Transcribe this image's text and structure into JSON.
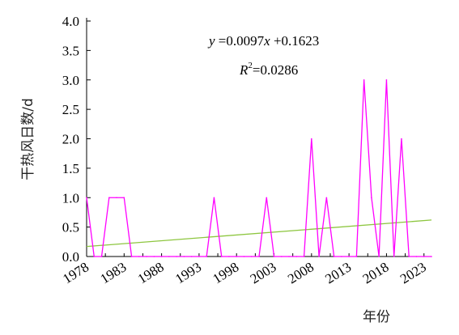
{
  "chart_data": {
    "type": "line",
    "xlabel": "年份",
    "ylabel": "干热风日数/d",
    "xlim": [
      1978,
      2024
    ],
    "ylim": [
      0,
      4.0
    ],
    "x_ticks": [
      "1978",
      "1983",
      "1988",
      "1993",
      "1998",
      "2003",
      "2008",
      "2013",
      "2018",
      "2023"
    ],
    "y_ticks": [
      "0.0",
      "0.5",
      "1.0",
      "1.5",
      "2.0",
      "2.5",
      "3.0",
      "3.5",
      "4.0"
    ],
    "grid": false,
    "series": [
      {
        "role": "observed",
        "color": "#ff00ff",
        "x": [
          1978,
          1979,
          1980,
          1981,
          1982,
          1983,
          1984,
          1985,
          1986,
          1987,
          1988,
          1989,
          1990,
          1991,
          1992,
          1993,
          1994,
          1995,
          1996,
          1997,
          1998,
          1999,
          2000,
          2001,
          2002,
          2003,
          2004,
          2005,
          2006,
          2007,
          2008,
          2009,
          2010,
          2011,
          2012,
          2013,
          2014,
          2015,
          2016,
          2017,
          2018,
          2019,
          2020,
          2021,
          2022,
          2023,
          2024
        ],
        "y": [
          1,
          0,
          0,
          1,
          1,
          1,
          0,
          0,
          0,
          0,
          0,
          0,
          0,
          0,
          0,
          0,
          0,
          1,
          0,
          0,
          0,
          0,
          0,
          0,
          1,
          0,
          0,
          0,
          0,
          0,
          2,
          0,
          1,
          0,
          0,
          0,
          0,
          3,
          1,
          0,
          3,
          0,
          2,
          0,
          0,
          0,
          0
        ]
      },
      {
        "role": "trend",
        "color": "#8dc63f",
        "x": [
          1978,
          2024
        ],
        "y": [
          0.17,
          0.62
        ]
      }
    ],
    "annotations": {
      "equation_y": "y",
      "equation_rest": " =0.0097",
      "equation_x": "x",
      "equation_tail": " +0.1623",
      "r2_symbol": "R",
      "r2_sup": "2",
      "r2_value": "=0.0286"
    }
  }
}
